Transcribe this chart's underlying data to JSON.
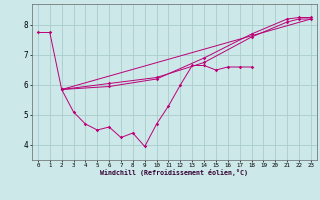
{
  "xlabel": "Windchill (Refroidissement éolien,°C)",
  "xlim": [
    -0.5,
    23.5
  ],
  "ylim": [
    3.5,
    8.7
  ],
  "yticks": [
    4,
    5,
    6,
    7,
    8
  ],
  "xticks": [
    0,
    1,
    2,
    3,
    4,
    5,
    6,
    7,
    8,
    9,
    10,
    11,
    12,
    13,
    14,
    15,
    16,
    17,
    18,
    19,
    20,
    21,
    22,
    23
  ],
  "bg_color": "#cce8e8",
  "line_color": "#bb0077",
  "grid_color": "#aacccc",
  "line1_x": [
    0,
    1,
    2,
    3,
    4,
    5,
    6,
    7,
    8,
    9,
    10,
    11,
    12,
    13,
    14,
    15,
    16,
    17,
    18
  ],
  "line1_y": [
    7.75,
    7.75,
    5.85,
    5.1,
    4.7,
    4.5,
    4.6,
    4.25,
    4.4,
    3.95,
    4.7,
    5.3,
    6.0,
    6.65,
    6.65,
    6.5,
    6.6,
    6.6,
    6.6
  ],
  "line2_x": [
    2,
    6,
    10,
    14,
    18,
    21,
    22,
    23
  ],
  "line2_y": [
    5.85,
    6.05,
    6.25,
    6.75,
    7.6,
    8.1,
    8.2,
    8.2
  ],
  "line3_x": [
    2,
    6,
    10,
    14,
    18,
    21,
    22,
    23
  ],
  "line3_y": [
    5.85,
    5.95,
    6.2,
    6.9,
    7.7,
    8.2,
    8.25,
    8.25
  ],
  "line4_x": [
    2,
    23
  ],
  "line4_y": [
    5.85,
    8.2
  ]
}
